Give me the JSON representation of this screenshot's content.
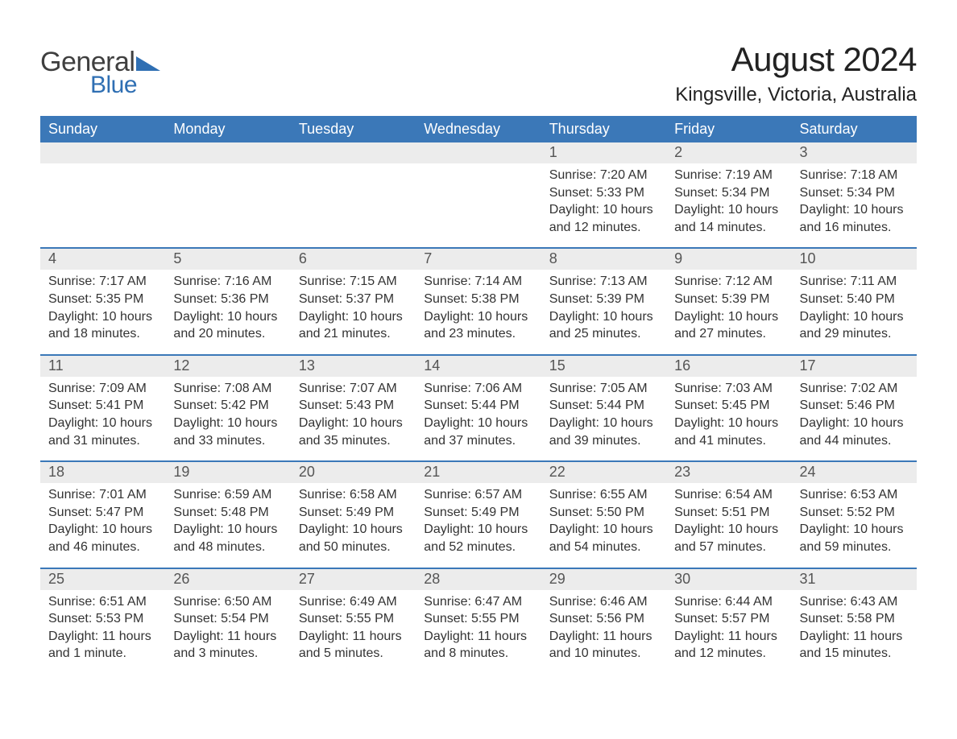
{
  "logo": {
    "word1": "General",
    "word2": "Blue",
    "triangle_color": "#2f6fb3",
    "text_color_word1": "#3f3f3f",
    "text_color_word2": "#2f6fb3"
  },
  "title": "August 2024",
  "location": "Kingsville, Victoria, Australia",
  "colors": {
    "header_bg": "#3b78b8",
    "header_text": "#ffffff",
    "daynum_bg": "#ececec",
    "daynum_text": "#555555",
    "week_border": "#3b78b8",
    "body_text": "#333333",
    "page_bg": "#ffffff"
  },
  "weekdays": [
    "Sunday",
    "Monday",
    "Tuesday",
    "Wednesday",
    "Thursday",
    "Friday",
    "Saturday"
  ],
  "weeks": [
    [
      {
        "n": "",
        "lines": []
      },
      {
        "n": "",
        "lines": []
      },
      {
        "n": "",
        "lines": []
      },
      {
        "n": "",
        "lines": []
      },
      {
        "n": "1",
        "lines": [
          "Sunrise: 7:20 AM",
          "Sunset: 5:33 PM",
          "Daylight: 10 hours and 12 minutes."
        ]
      },
      {
        "n": "2",
        "lines": [
          "Sunrise: 7:19 AM",
          "Sunset: 5:34 PM",
          "Daylight: 10 hours and 14 minutes."
        ]
      },
      {
        "n": "3",
        "lines": [
          "Sunrise: 7:18 AM",
          "Sunset: 5:34 PM",
          "Daylight: 10 hours and 16 minutes."
        ]
      }
    ],
    [
      {
        "n": "4",
        "lines": [
          "Sunrise: 7:17 AM",
          "Sunset: 5:35 PM",
          "Daylight: 10 hours and 18 minutes."
        ]
      },
      {
        "n": "5",
        "lines": [
          "Sunrise: 7:16 AM",
          "Sunset: 5:36 PM",
          "Daylight: 10 hours and 20 minutes."
        ]
      },
      {
        "n": "6",
        "lines": [
          "Sunrise: 7:15 AM",
          "Sunset: 5:37 PM",
          "Daylight: 10 hours and 21 minutes."
        ]
      },
      {
        "n": "7",
        "lines": [
          "Sunrise: 7:14 AM",
          "Sunset: 5:38 PM",
          "Daylight: 10 hours and 23 minutes."
        ]
      },
      {
        "n": "8",
        "lines": [
          "Sunrise: 7:13 AM",
          "Sunset: 5:39 PM",
          "Daylight: 10 hours and 25 minutes."
        ]
      },
      {
        "n": "9",
        "lines": [
          "Sunrise: 7:12 AM",
          "Sunset: 5:39 PM",
          "Daylight: 10 hours and 27 minutes."
        ]
      },
      {
        "n": "10",
        "lines": [
          "Sunrise: 7:11 AM",
          "Sunset: 5:40 PM",
          "Daylight: 10 hours and 29 minutes."
        ]
      }
    ],
    [
      {
        "n": "11",
        "lines": [
          "Sunrise: 7:09 AM",
          "Sunset: 5:41 PM",
          "Daylight: 10 hours and 31 minutes."
        ]
      },
      {
        "n": "12",
        "lines": [
          "Sunrise: 7:08 AM",
          "Sunset: 5:42 PM",
          "Daylight: 10 hours and 33 minutes."
        ]
      },
      {
        "n": "13",
        "lines": [
          "Sunrise: 7:07 AM",
          "Sunset: 5:43 PM",
          "Daylight: 10 hours and 35 minutes."
        ]
      },
      {
        "n": "14",
        "lines": [
          "Sunrise: 7:06 AM",
          "Sunset: 5:44 PM",
          "Daylight: 10 hours and 37 minutes."
        ]
      },
      {
        "n": "15",
        "lines": [
          "Sunrise: 7:05 AM",
          "Sunset: 5:44 PM",
          "Daylight: 10 hours and 39 minutes."
        ]
      },
      {
        "n": "16",
        "lines": [
          "Sunrise: 7:03 AM",
          "Sunset: 5:45 PM",
          "Daylight: 10 hours and 41 minutes."
        ]
      },
      {
        "n": "17",
        "lines": [
          "Sunrise: 7:02 AM",
          "Sunset: 5:46 PM",
          "Daylight: 10 hours and 44 minutes."
        ]
      }
    ],
    [
      {
        "n": "18",
        "lines": [
          "Sunrise: 7:01 AM",
          "Sunset: 5:47 PM",
          "Daylight: 10 hours and 46 minutes."
        ]
      },
      {
        "n": "19",
        "lines": [
          "Sunrise: 6:59 AM",
          "Sunset: 5:48 PM",
          "Daylight: 10 hours and 48 minutes."
        ]
      },
      {
        "n": "20",
        "lines": [
          "Sunrise: 6:58 AM",
          "Sunset: 5:49 PM",
          "Daylight: 10 hours and 50 minutes."
        ]
      },
      {
        "n": "21",
        "lines": [
          "Sunrise: 6:57 AM",
          "Sunset: 5:49 PM",
          "Daylight: 10 hours and 52 minutes."
        ]
      },
      {
        "n": "22",
        "lines": [
          "Sunrise: 6:55 AM",
          "Sunset: 5:50 PM",
          "Daylight: 10 hours and 54 minutes."
        ]
      },
      {
        "n": "23",
        "lines": [
          "Sunrise: 6:54 AM",
          "Sunset: 5:51 PM",
          "Daylight: 10 hours and 57 minutes."
        ]
      },
      {
        "n": "24",
        "lines": [
          "Sunrise: 6:53 AM",
          "Sunset: 5:52 PM",
          "Daylight: 10 hours and 59 minutes."
        ]
      }
    ],
    [
      {
        "n": "25",
        "lines": [
          "Sunrise: 6:51 AM",
          "Sunset: 5:53 PM",
          "Daylight: 11 hours and 1 minute."
        ]
      },
      {
        "n": "26",
        "lines": [
          "Sunrise: 6:50 AM",
          "Sunset: 5:54 PM",
          "Daylight: 11 hours and 3 minutes."
        ]
      },
      {
        "n": "27",
        "lines": [
          "Sunrise: 6:49 AM",
          "Sunset: 5:55 PM",
          "Daylight: 11 hours and 5 minutes."
        ]
      },
      {
        "n": "28",
        "lines": [
          "Sunrise: 6:47 AM",
          "Sunset: 5:55 PM",
          "Daylight: 11 hours and 8 minutes."
        ]
      },
      {
        "n": "29",
        "lines": [
          "Sunrise: 6:46 AM",
          "Sunset: 5:56 PM",
          "Daylight: 11 hours and 10 minutes."
        ]
      },
      {
        "n": "30",
        "lines": [
          "Sunrise: 6:44 AM",
          "Sunset: 5:57 PM",
          "Daylight: 11 hours and 12 minutes."
        ]
      },
      {
        "n": "31",
        "lines": [
          "Sunrise: 6:43 AM",
          "Sunset: 5:58 PM",
          "Daylight: 11 hours and 15 minutes."
        ]
      }
    ]
  ]
}
